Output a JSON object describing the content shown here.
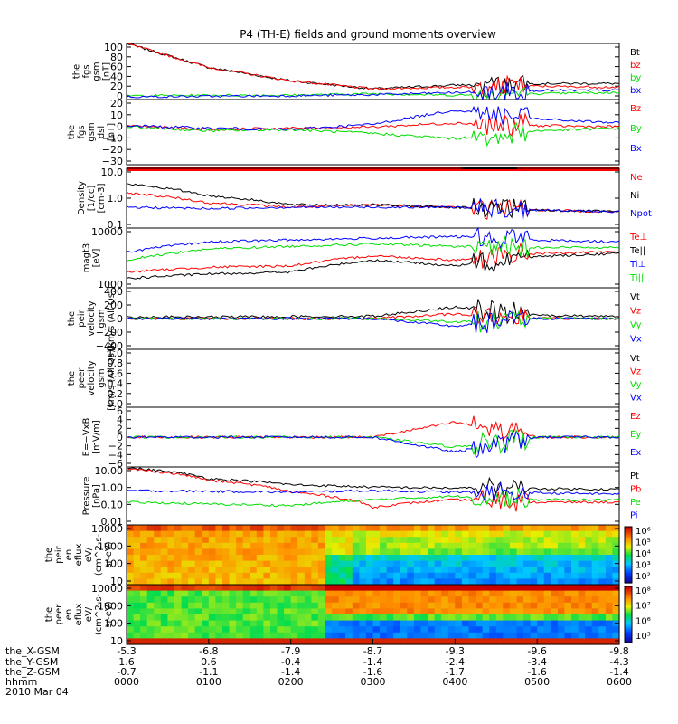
{
  "title": "P4 (TH-E) fields and ground moments overview",
  "colors": {
    "black": "#000000",
    "red": "#ff0000",
    "green": "#00dd00",
    "blue": "#0000ff"
  },
  "panels": [
    {
      "id": "fgs-mag",
      "ylabel": [
        "the",
        "fgs",
        "gsm",
        "[nT]"
      ],
      "yticks": [
        "100",
        "80",
        "60",
        "40",
        "20",
        "0"
      ],
      "legend": [
        {
          "label": "Bt",
          "color": "black"
        },
        {
          "label": "bz",
          "color": "red"
        },
        {
          "label": "by",
          "color": "green"
        },
        {
          "label": "bx",
          "color": "blue"
        }
      ]
    },
    {
      "id": "fgs-dsl",
      "ylabel": [
        "the",
        "fgs",
        "gsm",
        "dsl",
        "[nT]"
      ],
      "yticks": [
        "20",
        "10",
        "0",
        "−10",
        "−20",
        "−30"
      ],
      "legend": [
        {
          "label": "Bz",
          "color": "red"
        },
        {
          "label": "By",
          "color": "green"
        },
        {
          "label": "Bx",
          "color": "blue"
        }
      ]
    },
    {
      "id": "density",
      "ylabel": [
        "Density",
        "[1/cc]",
        "[cm-3]"
      ],
      "yticks": [
        "10.0",
        "1.0",
        "0.1"
      ],
      "legend": [
        {
          "label": "Ne",
          "color": "red"
        },
        {
          "label": "Ni",
          "color": "black"
        },
        {
          "label": "Npot",
          "color": "blue"
        }
      ]
    },
    {
      "id": "temperature",
      "ylabel": [
        "magt3",
        "[eV]"
      ],
      "yticks": [
        "10000",
        "1000"
      ],
      "legend": [
        {
          "label": "Te⊥",
          "color": "red"
        },
        {
          "label": "Te||",
          "color": "black"
        },
        {
          "label": "Ti⊥",
          "color": "blue"
        },
        {
          "label": "Ti||",
          "color": "green"
        }
      ]
    },
    {
      "id": "peir-velocity",
      "ylabel": [
        "the",
        "peir",
        "velocity",
        "gsm",
        "[km/s (All Qs)]"
      ],
      "yticks": [
        "400",
        "200",
        "0",
        "−200",
        "−400"
      ],
      "legend": [
        {
          "label": "Vt",
          "color": "black"
        },
        {
          "label": "Vz",
          "color": "red"
        },
        {
          "label": "Vy",
          "color": "green"
        },
        {
          "label": "Vx",
          "color": "blue"
        }
      ]
    },
    {
      "id": "peer-velocity",
      "ylabel": [
        "the",
        "peer",
        "velocity",
        "gsm",
        "[km/s (All Qs)]"
      ],
      "yticks": [
        "1.0",
        "0.8",
        "0.6",
        "0.4",
        "0.2",
        "0.0"
      ],
      "legend": [
        {
          "label": "Vt",
          "color": "black"
        },
        {
          "label": "Vz",
          "color": "red"
        },
        {
          "label": "Vy",
          "color": "green"
        },
        {
          "label": "Vx",
          "color": "blue"
        }
      ]
    },
    {
      "id": "efield",
      "ylabel": [
        "E=−VxB",
        "[mV/m]"
      ],
      "yticks": [
        "6",
        "4",
        "2",
        "0",
        "−2",
        "−4",
        "−6"
      ],
      "legend": [
        {
          "label": "Ez",
          "color": "red"
        },
        {
          "label": "Ey",
          "color": "green"
        },
        {
          "label": "Ex",
          "color": "blue"
        }
      ]
    },
    {
      "id": "pressure",
      "ylabel": [
        "Pressure",
        "[nPa]"
      ],
      "yticks": [
        "10.00",
        "1.00",
        "0.10",
        "0.01"
      ],
      "legend": [
        {
          "label": "Pt",
          "color": "black"
        },
        {
          "label": "Pb",
          "color": "red"
        },
        {
          "label": "Pe",
          "color": "green"
        },
        {
          "label": "Pi",
          "color": "blue"
        }
      ]
    },
    {
      "id": "peir-eflux",
      "ylabel": [
        "the",
        "peir",
        "en",
        "eflux",
        "eV/",
        "(cm^2-s-",
        "sr-eV)"
      ],
      "yticks": [
        "10000",
        "1000",
        "100",
        "10"
      ],
      "colorbar": [
        "10⁶",
        "10⁵",
        "10⁴",
        "10³",
        "10²"
      ]
    },
    {
      "id": "peer-eflux",
      "ylabel": [
        "the",
        "peer",
        "en",
        "eflux",
        "eV/",
        "(cm^2-s-",
        "sr-eV)"
      ],
      "yticks": [
        "10000",
        "1000",
        "100",
        "10"
      ],
      "colorbar": [
        "10⁸",
        "10⁷",
        "10⁶",
        "10⁵"
      ]
    }
  ],
  "xaxis": {
    "row_labels": [
      "the_X-GSM",
      "the_Y-GSM",
      "the_Z-GSM",
      "hhmm",
      "2010 Mar 04"
    ],
    "ticks": [
      {
        "x": "-5.3",
        "y": "1.6",
        "z": "-0.7",
        "t": "0000"
      },
      {
        "x": "-6.8",
        "y": "0.6",
        "z": "-1.1",
        "t": "0100"
      },
      {
        "x": "-7.9",
        "y": "-0.4",
        "z": "-1.4",
        "t": "0200"
      },
      {
        "x": "-8.7",
        "y": "-1.4",
        "z": "-1.6",
        "t": "0300"
      },
      {
        "x": "-9.3",
        "y": "-2.4",
        "z": "-1.7",
        "t": "0400"
      },
      {
        "x": "-9.6",
        "y": "-3.4",
        "z": "-1.6",
        "t": "0500"
      },
      {
        "x": "-9.8",
        "y": "-4.3",
        "z": "-1.4",
        "t": "0600"
      }
    ]
  },
  "chart_data": {
    "type": "line",
    "title": "P4 (TH-E) fields and ground moments overview",
    "x_label": "hhmm",
    "time": [
      "0000",
      "0100",
      "0200",
      "0300",
      "0400",
      "0500",
      "0600"
    ],
    "panels": [
      {
        "name": "fgs gsm [nT]",
        "ylim": [
          -5,
          100
        ],
        "series": [
          {
            "name": "Bt",
            "color": "#000000",
            "values": [
              100,
              55,
              30,
              15,
              22,
              25,
              25
            ]
          },
          {
            "name": "bz",
            "color": "#ff0000",
            "values": [
              100,
              55,
              30,
              15,
              18,
              20,
              18
            ]
          },
          {
            "name": "by",
            "color": "#00dd00",
            "values": [
              2,
              3,
              3,
              6,
              3,
              6,
              8
            ]
          },
          {
            "name": "bx",
            "color": "#0000ff",
            "values": [
              0,
              1,
              2,
              4,
              8,
              12,
              12
            ]
          }
        ]
      },
      {
        "name": "fgs gsm dsl [nT]",
        "ylim": [
          -30,
          20
        ],
        "series": [
          {
            "name": "Bz",
            "color": "#ff0000",
            "values": [
              0,
              -3,
              -2,
              -1,
              2,
              0,
              -1
            ]
          },
          {
            "name": "By",
            "color": "#00dd00",
            "values": [
              -1,
              -4,
              -3,
              -6,
              -10,
              -4,
              -2
            ]
          },
          {
            "name": "Bx",
            "color": "#0000ff",
            "values": [
              0,
              -2,
              -3,
              1,
              12,
              5,
              2
            ]
          }
        ]
      },
      {
        "name": "Density [1/cc]",
        "log": true,
        "ylim": [
          0.1,
          10
        ],
        "series": [
          {
            "name": "Ne",
            "color": "#ff0000",
            "values": [
              1.5,
              0.7,
              0.5,
              0.6,
              0.5,
              0.4,
              0.35
            ]
          },
          {
            "name": "Ni",
            "color": "#000000",
            "values": [
              3,
              1.2,
              0.6,
              0.6,
              0.5,
              0.4,
              0.35
            ]
          },
          {
            "name": "Npot",
            "color": "#0000ff",
            "values": [
              0.5,
              0.45,
              0.5,
              0.5,
              0.5,
              0.4,
              0.35
            ]
          }
        ]
      },
      {
        "name": "magt3 [eV]",
        "log": true,
        "ylim": [
          500,
          10000
        ],
        "series": [
          {
            "name": "Te⊥",
            "color": "#ff0000",
            "values": [
              1100,
              1400,
              1500,
              2500,
              2000,
              2800,
              3000
            ]
          },
          {
            "name": "Te||",
            "color": "#000000",
            "values": [
              800,
              1000,
              1100,
              2000,
              1500,
              2400,
              2800
            ]
          },
          {
            "name": "Ti⊥",
            "color": "#0000ff",
            "values": [
              3000,
              5000,
              5500,
              6000,
              6500,
              5500,
              5000
            ]
          },
          {
            "name": "Ti||",
            "color": "#00dd00",
            "values": [
              2000,
              3500,
              4000,
              4500,
              4000,
              3800,
              3800
            ]
          }
        ]
      },
      {
        "name": "peir velocity gsm [km/s (All Qs)]",
        "ylim": [
          -400,
          400
        ],
        "series": [
          {
            "name": "Vt",
            "color": "#000000",
            "values": [
              20,
              20,
              25,
              30,
              150,
              40,
              30
            ]
          },
          {
            "name": "Vz",
            "color": "#ff0000",
            "values": [
              0,
              0,
              0,
              0,
              60,
              0,
              0
            ]
          },
          {
            "name": "Vy",
            "color": "#00dd00",
            "values": [
              0,
              0,
              0,
              0,
              -40,
              0,
              0
            ]
          },
          {
            "name": "Vx",
            "color": "#0000ff",
            "values": [
              0,
              0,
              0,
              0,
              -100,
              0,
              0
            ]
          }
        ]
      },
      {
        "name": "peer velocity gsm [km/s (All Qs)]",
        "ylim": [
          0,
          1
        ],
        "series": []
      },
      {
        "name": "E=-VxB [mV/m]",
        "ylim": [
          -6,
          6
        ],
        "series": [
          {
            "name": "Ez",
            "color": "#ff0000",
            "values": [
              0,
              0,
              0,
              0,
              3,
              0,
              0
            ]
          },
          {
            "name": "Ey",
            "color": "#00dd00",
            "values": [
              0,
              0,
              0,
              0,
              -2,
              0,
              0
            ]
          },
          {
            "name": "Ex",
            "color": "#0000ff",
            "values": [
              0,
              0,
              0,
              0,
              -3,
              0,
              0
            ]
          }
        ]
      },
      {
        "name": "Pressure [nPa]",
        "log": true,
        "ylim": [
          0.01,
          10
        ],
        "series": [
          {
            "name": "Pt",
            "color": "#000000",
            "values": [
              9,
              2.5,
              1.2,
              0.9,
              0.8,
              0.75,
              0.7
            ]
          },
          {
            "name": "Pb",
            "color": "#ff0000",
            "values": [
              8,
              2,
              0.5,
              0.08,
              0.2,
              0.15,
              0.15
            ]
          },
          {
            "name": "Pe",
            "color": "#00dd00",
            "values": [
              0.15,
              0.12,
              0.1,
              0.2,
              0.3,
              0.2,
              0.2
            ]
          },
          {
            "name": "Pi",
            "color": "#0000ff",
            "values": [
              0.6,
              0.55,
              0.5,
              0.6,
              0.5,
              0.45,
              0.4
            ]
          }
        ]
      },
      {
        "name": "peir en eflux eV/(cm^2-s-sr-eV)",
        "type": "heatmap",
        "ylim": [
          5,
          15000
        ]
      },
      {
        "name": "peer en eflux eV/(cm^2-s-sr-eV)",
        "type": "heatmap",
        "ylim": [
          5,
          15000
        ]
      }
    ]
  }
}
